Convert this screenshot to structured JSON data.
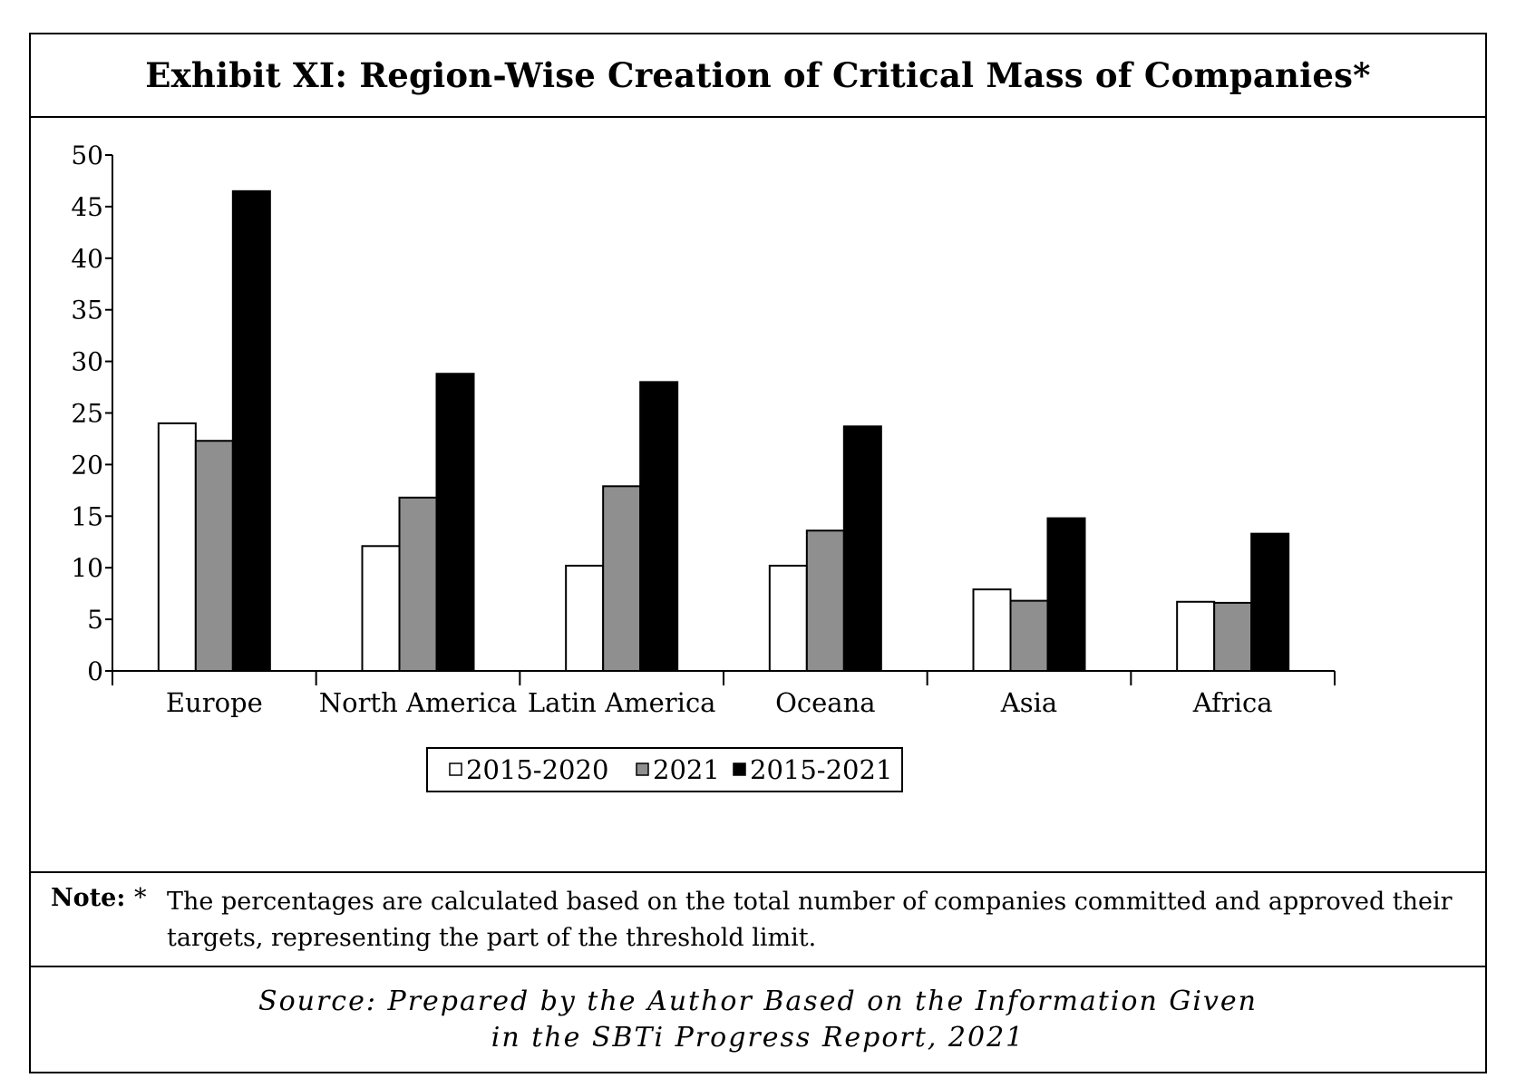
{
  "title": "Exhibit XI: Region-Wise Creation of Critical Mass of Companies*",
  "note": {
    "label": "Note:",
    "marker": "*",
    "text": "The percentages are calculated based on the total number of companies committed and approved their targets, representing the part of the threshold limit."
  },
  "source": {
    "line1": "Source: Prepared by the Author Based on the Information Given",
    "line2": "in the SBTi Progress Report, 2021"
  },
  "colors": {
    "series_2015_2020": "#ffffff",
    "series_2021": "#8f8f8f",
    "series_2015_2021": "#000000"
  },
  "chart_data": {
    "type": "bar",
    "categories": [
      "Europe",
      "North America",
      "Latin America",
      "Oceana",
      "Asia",
      "Africa"
    ],
    "series": [
      {
        "name": "2015-2020",
        "values": [
          24,
          12.1,
          10.2,
          10.2,
          7.9,
          6.7
        ]
      },
      {
        "name": "2021",
        "values": [
          22.3,
          16.8,
          17.9,
          13.6,
          6.8,
          6.6
        ]
      },
      {
        "name": "2015-2021",
        "values": [
          46.5,
          28.8,
          28,
          23.7,
          14.8,
          13.3
        ]
      }
    ],
    "ylim": [
      0,
      50
    ],
    "yticks": [
      0,
      5,
      10,
      15,
      20,
      25,
      30,
      35,
      40,
      45,
      50
    ],
    "legend_position": "bottom-center",
    "grid": false
  }
}
